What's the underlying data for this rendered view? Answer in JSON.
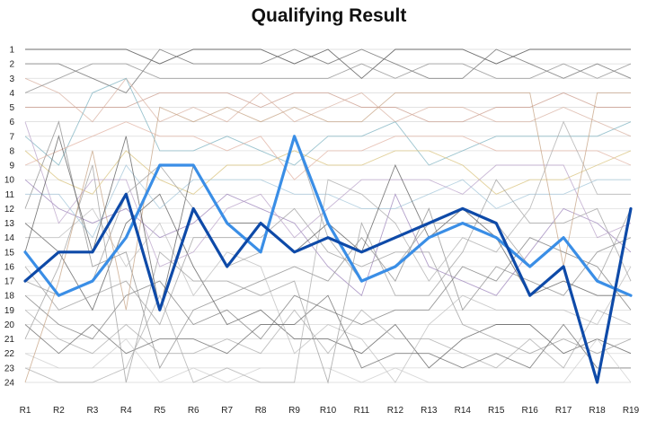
{
  "chart_data": {
    "type": "line",
    "title": "Qualifying Result",
    "xlabel": "",
    "ylabel": "",
    "categories": [
      "R1",
      "R2",
      "R3",
      "R4",
      "R5",
      "R6",
      "R7",
      "R8",
      "R9",
      "R10",
      "R11",
      "R12",
      "R13",
      "R14",
      "R15",
      "R16",
      "R17",
      "R18",
      "R19"
    ],
    "y_ticks": [
      "1",
      "2",
      "3",
      "4",
      "5",
      "6",
      "7",
      "8",
      "9",
      "10",
      "11",
      "12",
      "13",
      "14",
      "15",
      "16",
      "17",
      "18",
      "19",
      "20",
      "21",
      "22",
      "23",
      "24"
    ],
    "ylim": [
      1,
      24
    ],
    "y_inverted": true,
    "grid": true,
    "legend": "none",
    "highlight_series": [
      {
        "color": "#3a8ee6",
        "values": [
          15,
          18,
          17,
          14,
          9,
          9,
          13,
          15,
          7,
          13,
          17,
          16,
          14,
          13,
          14,
          16,
          14,
          17,
          18
        ]
      },
      {
        "color": "#0e4aa8",
        "values": [
          17,
          15,
          15,
          11,
          19,
          12,
          16,
          13,
          15,
          14,
          15,
          14,
          13,
          12,
          13,
          18,
          16,
          24,
          12
        ]
      }
    ],
    "background_series": [
      {
        "color": "#444444",
        "values": [
          1,
          1,
          1,
          1,
          2,
          1,
          1,
          1,
          2,
          1,
          3,
          1,
          1,
          1,
          2,
          1,
          1,
          1,
          1
        ]
      },
      {
        "color": "#666666",
        "values": [
          2,
          2,
          3,
          4,
          1,
          2,
          2,
          2,
          1,
          2,
          1,
          2,
          3,
          3,
          1,
          2,
          3,
          2,
          3
        ]
      },
      {
        "color": "#c99a8a",
        "values": [
          5,
          5,
          5,
          5,
          4,
          4,
          4,
          5,
          4,
          4,
          5,
          5,
          6,
          6,
          5,
          5,
          4,
          5,
          5
        ]
      },
      {
        "color": "#d8b0a0",
        "values": [
          3,
          4,
          6,
          3,
          6,
          5,
          6,
          4,
          6,
          5,
          4,
          6,
          5,
          5,
          6,
          6,
          5,
          6,
          7
        ]
      },
      {
        "color": "#7ab0bf",
        "values": [
          7,
          9,
          4,
          3,
          8,
          8,
          7,
          8,
          9,
          7,
          7,
          6,
          9,
          8,
          7,
          7,
          7,
          7,
          6
        ]
      },
      {
        "color": "#9a80b8",
        "values": [
          10,
          12,
          13,
          12,
          14,
          13,
          11,
          12,
          13,
          16,
          18,
          11,
          16,
          17,
          18,
          15,
          12,
          13,
          15
        ]
      },
      {
        "color": "#d8c27a",
        "values": [
          8,
          10,
          11,
          8,
          10,
          11,
          9,
          9,
          8,
          9,
          9,
          8,
          8,
          9,
          11,
          10,
          10,
          9,
          8
        ]
      },
      {
        "color": "#888888",
        "values": [
          12,
          6,
          16,
          15,
          23,
          19,
          18,
          17,
          16,
          17,
          14,
          17,
          12,
          19,
          16,
          17,
          18,
          15,
          14
        ]
      },
      {
        "color": "#555555",
        "values": [
          13,
          15,
          19,
          13,
          11,
          16,
          20,
          19,
          21,
          21,
          22,
          20,
          23,
          21,
          20,
          20,
          22,
          21,
          22
        ]
      },
      {
        "color": "#bbbbbb",
        "values": [
          14,
          14,
          12,
          16,
          13,
          18,
          15,
          16,
          22,
          20,
          21,
          24,
          20,
          18,
          19,
          19,
          19,
          20,
          16
        ]
      },
      {
        "color": "#999999",
        "values": [
          16,
          19,
          18,
          17,
          20,
          14,
          14,
          14,
          12,
          15,
          16,
          15,
          15,
          20,
          21,
          22,
          21,
          22,
          21
        ]
      },
      {
        "color": "#a0c4d8",
        "values": [
          11,
          11,
          14,
          9,
          12,
          10,
          10,
          10,
          11,
          11,
          12,
          12,
          11,
          10,
          12,
          11,
          11,
          10,
          10
        ]
      },
      {
        "color": "#e0b0a0",
        "values": [
          9,
          8,
          7,
          6,
          7,
          7,
          8,
          7,
          10,
          8,
          8,
          7,
          7,
          7,
          8,
          8,
          8,
          8,
          9
        ]
      },
      {
        "color": "#777777",
        "values": [
          18,
          20,
          21,
          18,
          17,
          20,
          19,
          21,
          18,
          19,
          20,
          19,
          19,
          16,
          17,
          14,
          15,
          16,
          19
        ]
      },
      {
        "color": "#aaaaaa",
        "values": [
          19,
          21,
          22,
          20,
          22,
          22,
          21,
          22,
          19,
          22,
          19,
          21,
          21,
          22,
          23,
          21,
          23,
          19,
          20
        ]
      },
      {
        "color": "#666666",
        "values": [
          20,
          22,
          20,
          22,
          21,
          21,
          22,
          20,
          20,
          18,
          23,
          22,
          22,
          23,
          22,
          23,
          20,
          23,
          23
        ]
      },
      {
        "color": "#cccccc",
        "values": [
          22,
          23,
          23,
          21,
          24,
          23,
          24,
          23,
          23,
          23,
          24,
          23,
          24,
          24,
          24,
          24,
          24,
          21,
          24
        ]
      },
      {
        "color": "#999999",
        "values": [
          21,
          16,
          9,
          24,
          15,
          17,
          17,
          18,
          17,
          24,
          13,
          18,
          18,
          15,
          10,
          13,
          13,
          12,
          17
        ]
      },
      {
        "color": "#b8a0c8",
        "values": [
          6,
          13,
          10,
          10,
          16,
          15,
          12,
          11,
          14,
          12,
          10,
          10,
          10,
          11,
          9,
          9,
          9,
          14,
          13
        ]
      },
      {
        "color": "#aaaaaa",
        "values": [
          23,
          24,
          24,
          23,
          18,
          24,
          23,
          24,
          24,
          10,
          11,
          13,
          17,
          14,
          15,
          12,
          6,
          11,
          11
        ]
      },
      {
        "color": "#888888",
        "values": [
          4,
          3,
          2,
          2,
          3,
          3,
          3,
          3,
          3,
          3,
          2,
          3,
          2,
          2,
          3,
          3,
          2,
          3,
          2
        ]
      },
      {
        "color": "#c4a080",
        "values": [
          24,
          17,
          8,
          19,
          5,
          6,
          5,
          6,
          5,
          6,
          6,
          4,
          4,
          4,
          4,
          4,
          16,
          4,
          4
        ]
      },
      {
        "color": "#555555",
        "values": [
          15,
          7,
          15,
          7,
          19,
          9,
          13,
          13,
          15,
          13,
          15,
          9,
          14,
          12,
          14,
          18,
          17,
          18,
          18
        ]
      },
      {
        "color": "#999999",
        "values": [
          17,
          18,
          17,
          11,
          9,
          12,
          16,
          15,
          7,
          14,
          17,
          16,
          13,
          13,
          13,
          16,
          14,
          17,
          12
        ]
      }
    ]
  }
}
